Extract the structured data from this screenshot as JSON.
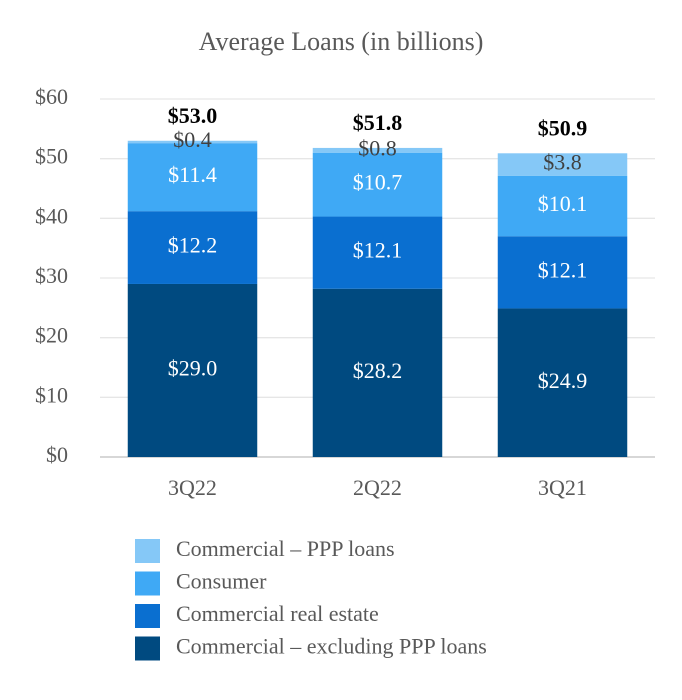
{
  "chart_data": {
    "type": "stacked-bar",
    "title": "Average Loans (in billions)",
    "categories": [
      "3Q22",
      "2Q22",
      "3Q21"
    ],
    "series": [
      {
        "name": "Commercial – excluding PPP loans",
        "color": "#004a80",
        "values": [
          29.0,
          28.2,
          24.9
        ],
        "value_labels": [
          "$29.0",
          "$28.2",
          "$24.9"
        ],
        "label_color": "#ffffff"
      },
      {
        "name": "Commercial real estate",
        "color": "#0a6fd0",
        "values": [
          12.2,
          12.1,
          12.1
        ],
        "value_labels": [
          "$12.2",
          "$12.1",
          "$12.1"
        ],
        "label_color": "#ffffff"
      },
      {
        "name": "Consumer",
        "color": "#3fa9f5",
        "values": [
          11.4,
          10.7,
          10.1
        ],
        "value_labels": [
          "$11.4",
          "$10.7",
          "$10.1"
        ],
        "label_color": "#ffffff"
      },
      {
        "name": "Commercial – PPP loans",
        "color": "#85c8f7",
        "values": [
          0.4,
          0.8,
          3.8
        ],
        "value_labels": [
          "$0.4",
          "$0.8",
          "$3.8"
        ],
        "label_color": "#404040"
      }
    ],
    "totals": [
      53.0,
      51.8,
      50.9
    ],
    "total_labels": [
      "$53.0",
      "$51.8",
      "$50.9"
    ],
    "ylim": [
      0,
      60
    ],
    "yticks": [
      {
        "value": 0,
        "label": "$0"
      },
      {
        "value": 10,
        "label": "$10"
      },
      {
        "value": 20,
        "label": "$20"
      },
      {
        "value": 30,
        "label": "$30"
      },
      {
        "value": 40,
        "label": "$40"
      },
      {
        "value": 50,
        "label": "$50"
      },
      {
        "value": 60,
        "label": "$60"
      }
    ],
    "grid": true,
    "legend": "bottom"
  }
}
